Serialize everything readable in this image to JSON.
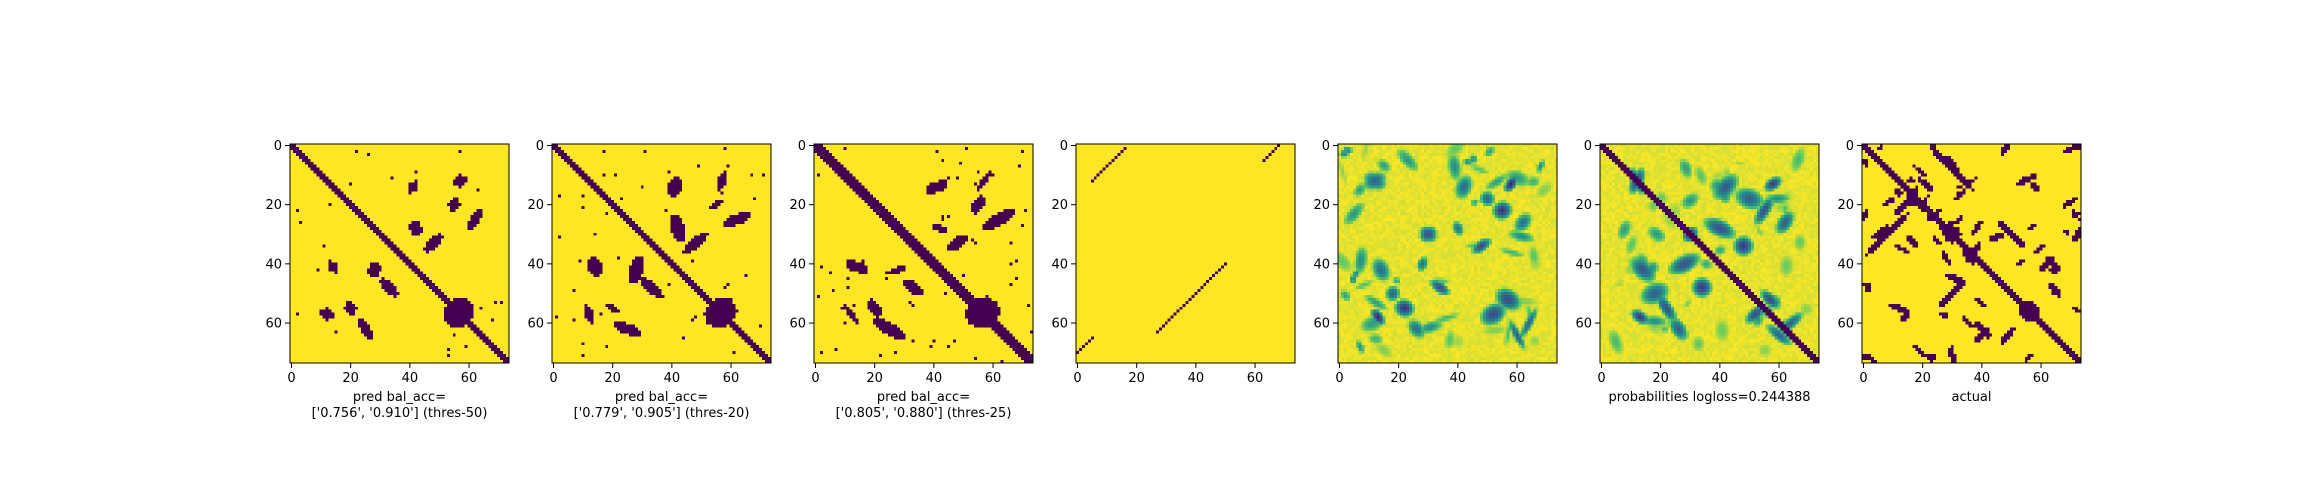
{
  "chart_data": [
    {
      "type": "heatmap",
      "xlabel_lines": [
        "pred bal_acc=",
        "['0.756', '0.910'] (thres-50)"
      ],
      "xticks": [
        0,
        20,
        40,
        60
      ],
      "yticks": [
        0,
        20,
        40,
        60
      ],
      "xlim": [
        -0.5,
        73.5
      ],
      "ylim": [
        73.5,
        -0.5
      ],
      "grid": false,
      "value_range": [
        0,
        1
      ],
      "matrix_size": 74
    },
    {
      "type": "heatmap",
      "xlabel_lines": [
        "pred bal_acc=",
        "['0.779', '0.905'] (thres-20)"
      ],
      "xticks": [
        0,
        20,
        40,
        60
      ],
      "yticks": [
        0,
        20,
        40,
        60
      ],
      "xlim": [
        -0.5,
        73.5
      ],
      "ylim": [
        73.5,
        -0.5
      ],
      "grid": false,
      "value_range": [
        0,
        1
      ],
      "matrix_size": 74
    },
    {
      "type": "heatmap",
      "xlabel_lines": [
        "pred bal_acc=",
        "['0.805', '0.880'] (thres-25)"
      ],
      "xticks": [
        0,
        20,
        40,
        60
      ],
      "yticks": [
        0,
        20,
        40,
        60
      ],
      "xlim": [
        -0.5,
        73.5
      ],
      "ylim": [
        73.5,
        -0.5
      ],
      "grid": false,
      "value_range": [
        0,
        1
      ],
      "matrix_size": 74
    },
    {
      "type": "heatmap",
      "xlabel_lines": [],
      "xticks": [
        0,
        20,
        40,
        60
      ],
      "yticks": [
        0,
        20,
        40,
        60
      ],
      "xlim": [
        -0.5,
        73.5
      ],
      "ylim": [
        73.5,
        -0.5
      ],
      "grid": false,
      "value_range": [
        0,
        1
      ],
      "matrix_size": 74
    },
    {
      "type": "heatmap",
      "xlabel_lines": [],
      "xticks": [
        0,
        20,
        40,
        60
      ],
      "yticks": [
        0,
        20,
        40,
        60
      ],
      "xlim": [
        -0.5,
        73.5
      ],
      "ylim": [
        73.5,
        -0.5
      ],
      "grid": false,
      "value_range": [
        0,
        1
      ],
      "matrix_size": 74
    },
    {
      "type": "heatmap",
      "xlabel_lines": [
        "probabilities logloss=0.244388"
      ],
      "xticks": [
        0,
        20,
        40,
        60
      ],
      "yticks": [
        0,
        20,
        40,
        60
      ],
      "xlim": [
        -0.5,
        73.5
      ],
      "ylim": [
        73.5,
        -0.5
      ],
      "grid": false,
      "value_range": [
        0,
        1
      ],
      "matrix_size": 74
    },
    {
      "type": "heatmap",
      "xlabel_lines": [
        "actual"
      ],
      "xticks": [
        0,
        20,
        40,
        60
      ],
      "yticks": [
        0,
        20,
        40,
        60
      ],
      "xlim": [
        -0.5,
        73.5
      ],
      "ylim": [
        73.5,
        -0.5
      ],
      "grid": false,
      "value_range": [
        0,
        1
      ],
      "matrix_size": 74
    }
  ],
  "colors": {
    "low": "#440154",
    "high": "#fde725",
    "colormap": "viridis"
  }
}
